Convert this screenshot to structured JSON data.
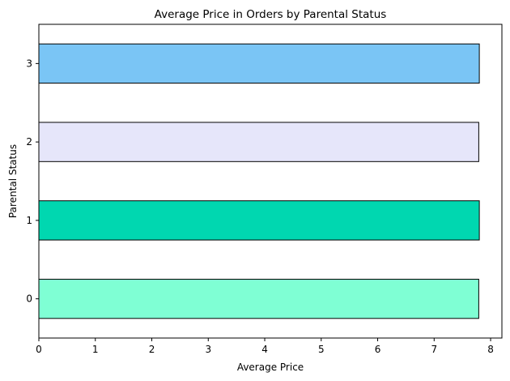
{
  "chart_data": {
    "type": "bar",
    "orientation": "horizontal",
    "title": "Average Price in Orders by Parental Status",
    "xlabel": "Average Price",
    "ylabel": "Parental Status",
    "categories": [
      "0",
      "1",
      "2",
      "3"
    ],
    "values": [
      7.79,
      7.8,
      7.79,
      7.8
    ],
    "colors": [
      "#7FFFD4",
      "#00D7B0",
      "#E6E6FA",
      "#7AC5F5"
    ],
    "edge_color": "#000000",
    "xlim": [
      0,
      8.2
    ],
    "xticks": [
      0,
      1,
      2,
      3,
      4,
      5,
      6,
      7,
      8
    ],
    "grid": false,
    "legend": false
  }
}
